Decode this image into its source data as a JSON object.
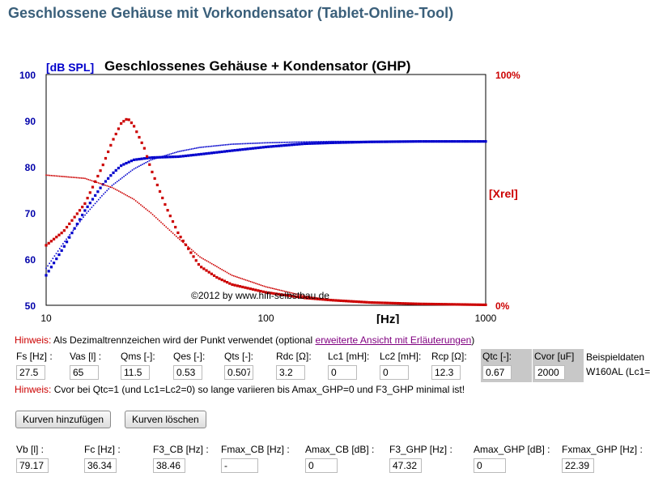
{
  "page": {
    "title": "Geschlossene Gehäuse mit Vorkondensator (Tablet-Online-Tool)"
  },
  "chart_data": {
    "type": "line",
    "title": "Geschlossenes Gehäuse + Kondensator (GHP)",
    "ylabel": "[dB SPL]",
    "xlabel": "[Hz]",
    "ylabel_right": "[Xrel]",
    "x_scale": "log",
    "xlim": [
      10,
      1000
    ],
    "ylim": [
      50,
      100
    ],
    "x_ticks": [
      "10",
      "100",
      "1000"
    ],
    "y_ticks": [
      "50",
      "60",
      "70",
      "80",
      "90",
      "100"
    ],
    "y2_ticks": [
      "0%",
      "100%"
    ],
    "copyright": "©2012 by www.hifi-selbstbau.de",
    "colors": {
      "spl": "#0000cc",
      "xrel": "#cc0000",
      "axis_left": "#0000aa",
      "axis_right": "#cc0000"
    },
    "series": [
      {
        "name": "SPL GHP",
        "color": "#0000cc",
        "style": "thick-dotted",
        "x": [
          10,
          12,
          15,
          18,
          20,
          22,
          25,
          30,
          40,
          50,
          70,
          100,
          150,
          200,
          300,
          500,
          700,
          1000
        ],
        "y": [
          56.5,
          62.5,
          70.5,
          76,
          78.5,
          80.3,
          81.5,
          82,
          82.2,
          82.7,
          83.5,
          84.3,
          85,
          85.2,
          85.4,
          85.5,
          85.5,
          85.5
        ]
      },
      {
        "name": "SPL CB",
        "color": "#0000cc",
        "style": "thin-dotted",
        "x": [
          10,
          12,
          15,
          18,
          20,
          25,
          30,
          40,
          50,
          70,
          100,
          150,
          200,
          300,
          500,
          1000
        ],
        "y": [
          58,
          63.5,
          69.5,
          73.8,
          76,
          79.5,
          81.5,
          83.3,
          84.2,
          84.9,
          85.2,
          85.4,
          85.5,
          85.5,
          85.5,
          85.5
        ]
      },
      {
        "name": "Xrel GHP",
        "color": "#cc0000",
        "style": "thick-dotted",
        "x": [
          10,
          12,
          15,
          18,
          20,
          22,
          23.5,
          25,
          28,
          30,
          35,
          40,
          50,
          60,
          70,
          100,
          150,
          200,
          300,
          500,
          1000
        ],
        "y": [
          63,
          66,
          72,
          80,
          85.5,
          89.5,
          90.5,
          89,
          84,
          79.5,
          71.5,
          65.5,
          58.5,
          56,
          54.5,
          52.8,
          51.6,
          51.1,
          50.6,
          50.3,
          50.1
        ]
      },
      {
        "name": "Xrel CB",
        "color": "#cc0000",
        "style": "thin-dotted",
        "x": [
          10,
          15,
          20,
          25,
          30,
          40,
          50,
          70,
          100,
          150,
          200,
          300,
          500,
          1000
        ],
        "y": [
          78.2,
          77.5,
          75.5,
          73,
          70,
          64.5,
          60.5,
          56.5,
          54,
          52,
          51.1,
          50.6,
          50.3,
          50.1
        ]
      }
    ]
  },
  "hints": {
    "hint_label": "Hinweis:",
    "hint1_text": " Als Dezimaltrennzeichen wird der Punkt verwendet (optional ",
    "hint1_link": "erweiterte Ansicht mit Erläuterungen",
    "hint1_close": ")",
    "hint2_text": " Cvor bei Qtc=1 (und Lc1=Lc2=0) so lange variieren bis Amax_GHP=0 und F3_GHP minimal ist!"
  },
  "inputs": [
    {
      "label": "Fs [Hz] :",
      "value": "27.5"
    },
    {
      "label": "Vas [l] :",
      "value": "65"
    },
    {
      "label": "Qms [-]:",
      "value": "11.5"
    },
    {
      "label": "Qes [-]:",
      "value": "0.53"
    },
    {
      "label": "Qts [-]:",
      "value": "0.507"
    },
    {
      "label": "Rdc [Ω]:",
      "value": "3.2"
    },
    {
      "label": "Lc1 [mH]:",
      "value": "0"
    },
    {
      "label": "Lc2 [mH]:",
      "value": "0"
    },
    {
      "label": "Rcp [Ω]:",
      "value": "12.3"
    },
    {
      "label": "Qtc [-]:",
      "value": "0.67"
    },
    {
      "label": "Cvor [uF]",
      "value": "2000"
    }
  ],
  "example": {
    "line1": "Beispieldaten",
    "line2": "W160AL (Lc1="
  },
  "buttons": {
    "add": "Kurven hinzufügen",
    "clear": "Kurven löschen"
  },
  "outputs": [
    {
      "label": "Vb [l] :",
      "value": "79.17"
    },
    {
      "label": "Fc [Hz] :",
      "value": "36.34"
    },
    {
      "label": "F3_CB [Hz] :",
      "value": "38.46"
    },
    {
      "label": "Fmax_CB [Hz] :",
      "value": "-"
    },
    {
      "label": "Amax_CB [dB] :",
      "value": "0"
    },
    {
      "label": "F3_GHP [Hz] :",
      "value": "47.32"
    },
    {
      "label": "Amax_GHP [dB] :",
      "value": "0"
    },
    {
      "label": "Fxmax_GHP [Hz] :",
      "value": "22.39"
    }
  ]
}
